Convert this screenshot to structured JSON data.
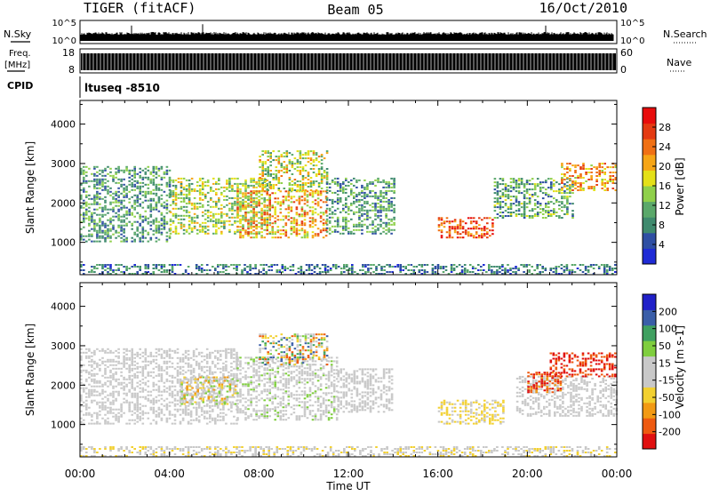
{
  "header": {
    "left": "TIGER (fitACF)",
    "center": "Beam 05",
    "right": "16/Oct/2010"
  },
  "status_panels": {
    "nsky_label": "N.Sky",
    "nsearch_label": "N.Search",
    "noise_top_tick": "10^5",
    "noise_bottom_tick": "10^0",
    "noise_right_top_tick": "10^5",
    "noise_right_bottom_tick": "10^0",
    "freq_label_1": "Freq.",
    "freq_label_2": "[MHz]",
    "freq_top_tick": "18",
    "freq_bottom_tick": "8",
    "nave_label": "Nave",
    "nave_top_tick": "60",
    "nave_bottom_tick": "0",
    "cpid_label": "CPID",
    "cpid_value": "ltuseq -8510"
  },
  "colors": {
    "power_scale": [
      "#1f2bd6",
      "#2f4fa3",
      "#3f8a6e",
      "#5aa86a",
      "#8fd04a",
      "#e4e018",
      "#f6a516",
      "#f07014",
      "#e43a12",
      "#e80c0c"
    ],
    "velocity_scale": [
      "#e01010",
      "#ee5a10",
      "#f29a14",
      "#f2d030",
      "#c8c8c8",
      "#c8c8c8",
      "#7fce3e",
      "#3fa060",
      "#3a5ea8",
      "#2020c8"
    ]
  },
  "chart_data": [
    {
      "type": "heatmap",
      "name": "power",
      "ylabel": "Slant Range [km]",
      "ylim": [
        180,
        4600
      ],
      "yticks": [
        "1000",
        "2000",
        "3000",
        "4000"
      ],
      "colorbar_label": "Power [dB]",
      "colorbar_ticks": [
        "4",
        "8",
        "12",
        "16",
        "20",
        "24",
        "28"
      ],
      "colorbar_range": [
        0,
        30
      ],
      "regions": [
        {
          "t": [
            0.0,
            24.0
          ],
          "r": [
            180,
            450
          ],
          "v": [
            2,
            12
          ]
        },
        {
          "t": [
            0.0,
            4.0
          ],
          "r": [
            1000,
            2900
          ],
          "v": [
            4,
            14
          ]
        },
        {
          "t": [
            4.0,
            8.5
          ],
          "r": [
            1200,
            2600
          ],
          "v": [
            8,
            20
          ]
        },
        {
          "t": [
            7.0,
            11.0
          ],
          "r": [
            1100,
            2300
          ],
          "v": [
            12,
            26
          ]
        },
        {
          "t": [
            8.0,
            11.0
          ],
          "r": [
            2300,
            3300
          ],
          "v": [
            8,
            22
          ]
        },
        {
          "t": [
            11.0,
            14.0
          ],
          "r": [
            1200,
            2600
          ],
          "v": [
            4,
            14
          ]
        },
        {
          "t": [
            16.0,
            18.5
          ],
          "r": [
            1100,
            1600
          ],
          "v": [
            18,
            30
          ]
        },
        {
          "t": [
            18.5,
            22.0
          ],
          "r": [
            1600,
            2600
          ],
          "v": [
            4,
            16
          ]
        },
        {
          "t": [
            21.5,
            24.0
          ],
          "r": [
            2300,
            3000
          ],
          "v": [
            14,
            26
          ]
        }
      ]
    },
    {
      "type": "heatmap",
      "name": "velocity",
      "xlabel": "Time UT",
      "ylabel": "Slant Range [km]",
      "xlim": [
        0,
        24
      ],
      "xticks": [
        "00:00",
        "04:00",
        "08:00",
        "12:00",
        "16:00",
        "20:00",
        "00:00"
      ],
      "ylim": [
        180,
        4600
      ],
      "yticks": [
        "1000",
        "2000",
        "3000",
        "4000"
      ],
      "colorbar_label": "Velocity [m s-1]",
      "colorbar_ticks": [
        "200",
        "100",
        "50",
        "15",
        "-15",
        "-50",
        "-100",
        "-200"
      ],
      "colorbar_range": [
        -250,
        250
      ],
      "regions": [
        {
          "t": [
            0.0,
            24.0
          ],
          "r": [
            180,
            450
          ],
          "v": [
            -80,
            20
          ]
        },
        {
          "t": [
            0.0,
            7.0
          ],
          "r": [
            1000,
            2900
          ],
          "v": [
            -15,
            15
          ]
        },
        {
          "t": [
            4.5,
            7.0
          ],
          "r": [
            1500,
            2200
          ],
          "v": [
            -150,
            100
          ]
        },
        {
          "t": [
            7.0,
            11.5
          ],
          "r": [
            1100,
            2700
          ],
          "v": [
            -15,
            60
          ]
        },
        {
          "t": [
            8.0,
            11.0
          ],
          "r": [
            2500,
            3300
          ],
          "v": [
            -200,
            200
          ]
        },
        {
          "t": [
            11.5,
            14.0
          ],
          "r": [
            1300,
            2400
          ],
          "v": [
            -15,
            40
          ]
        },
        {
          "t": [
            16.0,
            19.0
          ],
          "r": [
            1000,
            1600
          ],
          "v": [
            -80,
            -30
          ]
        },
        {
          "t": [
            19.5,
            24.0
          ],
          "r": [
            1200,
            2200
          ],
          "v": [
            -15,
            15
          ]
        },
        {
          "t": [
            20.0,
            21.5
          ],
          "r": [
            1800,
            2300
          ],
          "v": [
            -250,
            -120
          ]
        },
        {
          "t": [
            21.0,
            24.0
          ],
          "r": [
            2200,
            2800
          ],
          "v": [
            -250,
            -150
          ]
        }
      ]
    }
  ]
}
